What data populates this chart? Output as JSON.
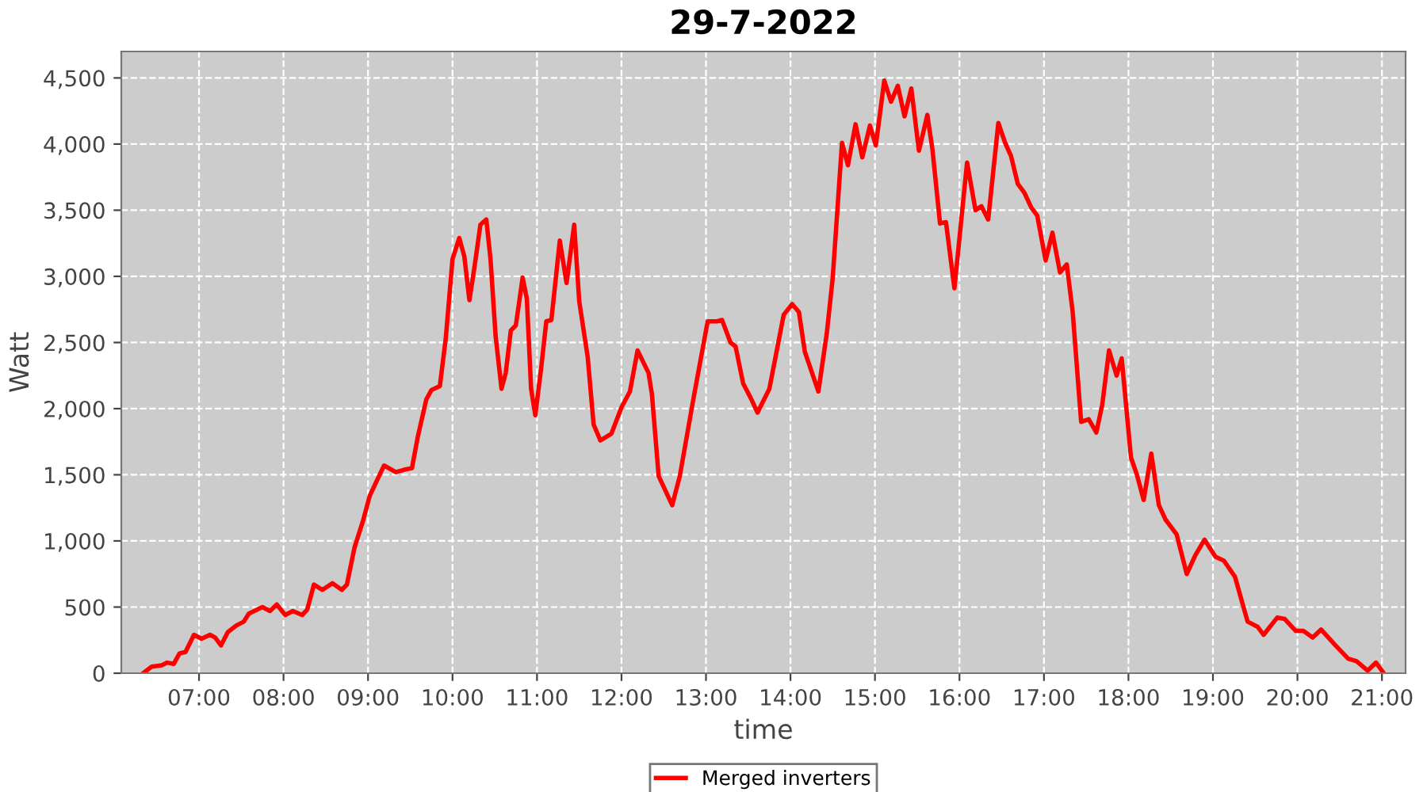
{
  "chart_data": {
    "type": "line",
    "title": "29-7-2022",
    "xlabel": "time",
    "ylabel": "Watt",
    "xlim": [
      6.08,
      21.28
    ],
    "xticks": [
      {
        "value": 7,
        "label": "07:00"
      },
      {
        "value": 8,
        "label": "08:00"
      },
      {
        "value": 9,
        "label": "09:00"
      },
      {
        "value": 10,
        "label": "10:00"
      },
      {
        "value": 11,
        "label": "11:00"
      },
      {
        "value": 12,
        "label": "12:00"
      },
      {
        "value": 13,
        "label": "13:00"
      },
      {
        "value": 14,
        "label": "14:00"
      },
      {
        "value": 15,
        "label": "15:00"
      },
      {
        "value": 16,
        "label": "16:00"
      },
      {
        "value": 17,
        "label": "17:00"
      },
      {
        "value": 18,
        "label": "18:00"
      },
      {
        "value": 19,
        "label": "19:00"
      },
      {
        "value": 20,
        "label": "20:00"
      },
      {
        "value": 21,
        "label": "21:00"
      }
    ],
    "ylim": [
      0,
      4700
    ],
    "yticks": [
      0,
      500,
      {
        "value": 1000,
        "label": "1,000"
      },
      {
        "value": 1500,
        "label": "1,500"
      },
      {
        "value": 2000,
        "label": "2,000"
      },
      {
        "value": 2500,
        "label": "2,500"
      },
      {
        "value": 3000,
        "label": "3,000"
      },
      {
        "value": 3500,
        "label": "3,500"
      },
      {
        "value": 4000,
        "label": "4,000"
      },
      {
        "value": 4500,
        "label": "4,500"
      }
    ],
    "grid": true,
    "legend": "bottom",
    "line_style": "solid",
    "marker": "none",
    "series": [
      {
        "name": "Merged inverters",
        "color": "#ff0000",
        "x": [
          6.34,
          6.44,
          6.56,
          6.62,
          6.7,
          6.77,
          6.84,
          6.94,
          7.03,
          7.13,
          7.19,
          7.26,
          7.34,
          7.44,
          7.53,
          7.59,
          7.75,
          7.84,
          7.92,
          8.02,
          8.11,
          8.22,
          8.28,
          8.36,
          8.46,
          8.58,
          8.69,
          8.75,
          8.84,
          8.94,
          9.02,
          9.1,
          9.19,
          9.33,
          9.44,
          9.52,
          9.59,
          9.69,
          9.75,
          9.85,
          9.92,
          10.0,
          10.08,
          10.14,
          10.2,
          10.26,
          10.33,
          10.4,
          10.45,
          10.51,
          10.58,
          10.63,
          10.69,
          10.75,
          10.83,
          10.88,
          10.93,
          10.98,
          11.05,
          11.11,
          11.17,
          11.27,
          11.35,
          11.44,
          11.5,
          11.6,
          11.67,
          11.75,
          11.88,
          12.0,
          12.1,
          12.19,
          12.32,
          12.36,
          12.44,
          12.6,
          12.69,
          12.85,
          13.02,
          13.13,
          13.19,
          13.29,
          13.35,
          13.44,
          13.53,
          13.61,
          13.75,
          13.92,
          14.02,
          14.1,
          14.17,
          14.33,
          14.43,
          14.5,
          14.61,
          14.68,
          14.77,
          14.85,
          14.94,
          15.01,
          15.11,
          15.19,
          15.27,
          15.35,
          15.43,
          15.52,
          15.62,
          15.68,
          15.77,
          15.84,
          15.94,
          16.09,
          16.19,
          16.26,
          16.34,
          16.46,
          16.54,
          16.61,
          16.69,
          16.77,
          16.85,
          16.92,
          17.02,
          17.1,
          17.19,
          17.27,
          17.34,
          17.44,
          17.53,
          17.62,
          17.69,
          17.77,
          17.86,
          17.92,
          18.03,
          18.1,
          18.18,
          18.27,
          18.36,
          18.44,
          18.57,
          18.69,
          18.79,
          18.9,
          19.03,
          19.13,
          19.26,
          19.41,
          19.53,
          19.6,
          19.76,
          19.85,
          19.98,
          20.07,
          20.18,
          20.28,
          20.45,
          20.6,
          20.7,
          20.83,
          20.93,
          21.01
        ],
        "values": [
          0,
          50,
          60,
          80,
          70,
          150,
          160,
          290,
          260,
          290,
          270,
          210,
          310,
          360,
          390,
          450,
          500,
          470,
          520,
          440,
          470,
          440,
          480,
          670,
          630,
          680,
          630,
          670,
          950,
          1150,
          1340,
          1450,
          1570,
          1520,
          1540,
          1550,
          1790,
          2070,
          2140,
          2170,
          2530,
          3130,
          3290,
          3150,
          2820,
          3070,
          3390,
          3430,
          3130,
          2550,
          2150,
          2270,
          2590,
          2630,
          2990,
          2830,
          2150,
          1950,
          2310,
          2660,
          2670,
          3270,
          2950,
          3390,
          2810,
          2390,
          1880,
          1760,
          1810,
          2010,
          2130,
          2440,
          2270,
          2110,
          1490,
          1270,
          1490,
          2070,
          2660,
          2660,
          2670,
          2500,
          2470,
          2190,
          2080,
          1970,
          2150,
          2710,
          2790,
          2730,
          2430,
          2130,
          2570,
          2990,
          4010,
          3840,
          4150,
          3900,
          4140,
          3990,
          4480,
          4320,
          4440,
          4210,
          4420,
          3950,
          4220,
          3960,
          3400,
          3410,
          2910,
          3860,
          3500,
          3530,
          3430,
          4160,
          4010,
          3910,
          3700,
          3630,
          3520,
          3460,
          3120,
          3330,
          3030,
          3090,
          2730,
          1900,
          1920,
          1820,
          2030,
          2440,
          2250,
          2380,
          1630,
          1500,
          1310,
          1660,
          1270,
          1160,
          1050,
          750,
          890,
          1010,
          880,
          850,
          730,
          390,
          350,
          290,
          420,
          410,
          320,
          320,
          270,
          330,
          210,
          110,
          90,
          20,
          80,
          10
        ]
      }
    ]
  }
}
